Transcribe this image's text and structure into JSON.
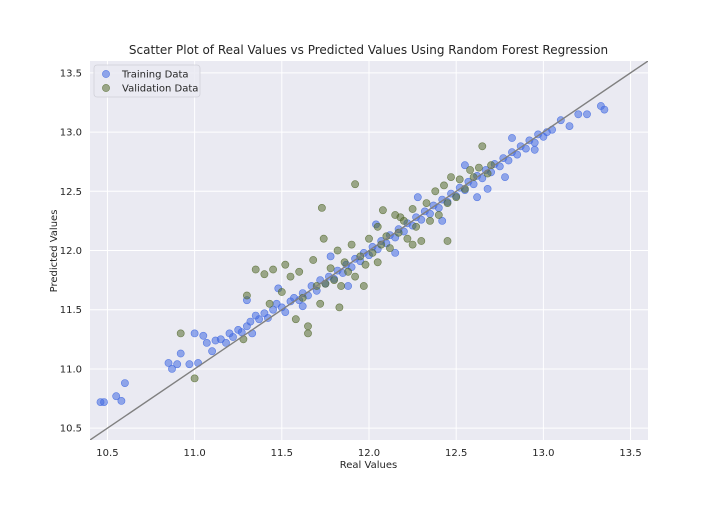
{
  "chart_data": {
    "type": "scatter",
    "title": "Scatter Plot of Real Values vs Predicted Values Using Random Forest Regression",
    "xlabel": "Real Values",
    "ylabel": "Predicted Values",
    "xlim": [
      10.4,
      13.6
    ],
    "ylim": [
      10.4,
      13.6
    ],
    "xticks": [
      "10.5",
      "11.0",
      "11.5",
      "12.0",
      "12.5",
      "13.0",
      "13.5"
    ],
    "yticks": [
      "10.5",
      "11.0",
      "11.5",
      "12.0",
      "12.5",
      "13.0",
      "13.5"
    ],
    "grid": true,
    "background": "#eaeaf2",
    "legend_position": "upper left",
    "reference_line": {
      "from": [
        10.4,
        10.4
      ],
      "to": [
        13.6,
        13.6
      ],
      "color": "#808080"
    },
    "series": [
      {
        "name": "Training Data",
        "color": "#4169e1",
        "points": [
          [
            10.46,
            10.72
          ],
          [
            10.48,
            10.72
          ],
          [
            10.55,
            10.77
          ],
          [
            10.58,
            10.73
          ],
          [
            10.6,
            10.88
          ],
          [
            10.85,
            11.05
          ],
          [
            10.87,
            11.0
          ],
          [
            10.9,
            11.04
          ],
          [
            10.92,
            11.13
          ],
          [
            10.97,
            11.04
          ],
          [
            11.0,
            11.3
          ],
          [
            11.02,
            11.05
          ],
          [
            11.05,
            11.28
          ],
          [
            11.07,
            11.22
          ],
          [
            11.1,
            11.15
          ],
          [
            11.12,
            11.24
          ],
          [
            11.15,
            11.25
          ],
          [
            11.18,
            11.22
          ],
          [
            11.2,
            11.3
          ],
          [
            11.22,
            11.27
          ],
          [
            11.25,
            11.33
          ],
          [
            11.27,
            11.31
          ],
          [
            11.3,
            11.36
          ],
          [
            11.32,
            11.4
          ],
          [
            11.33,
            11.3
          ],
          [
            11.35,
            11.45
          ],
          [
            11.37,
            11.42
          ],
          [
            11.4,
            11.47
          ],
          [
            11.42,
            11.43
          ],
          [
            11.45,
            11.5
          ],
          [
            11.47,
            11.55
          ],
          [
            11.5,
            11.52
          ],
          [
            11.52,
            11.48
          ],
          [
            11.55,
            11.57
          ],
          [
            11.57,
            11.6
          ],
          [
            11.6,
            11.58
          ],
          [
            11.62,
            11.64
          ],
          [
            11.65,
            11.62
          ],
          [
            11.67,
            11.7
          ],
          [
            11.7,
            11.66
          ],
          [
            11.72,
            11.75
          ],
          [
            11.75,
            11.72
          ],
          [
            11.77,
            11.78
          ],
          [
            11.8,
            11.76
          ],
          [
            11.82,
            11.83
          ],
          [
            11.85,
            11.81
          ],
          [
            11.87,
            11.88
          ],
          [
            11.9,
            11.86
          ],
          [
            11.92,
            11.93
          ],
          [
            11.95,
            11.91
          ],
          [
            11.97,
            11.98
          ],
          [
            12.0,
            11.96
          ],
          [
            12.02,
            12.03
          ],
          [
            12.05,
            12.01
          ],
          [
            12.07,
            12.08
          ],
          [
            12.1,
            12.06
          ],
          [
            12.12,
            12.13
          ],
          [
            12.15,
            12.11
          ],
          [
            12.17,
            12.18
          ],
          [
            12.2,
            12.16
          ],
          [
            12.22,
            12.23
          ],
          [
            12.25,
            12.21
          ],
          [
            12.27,
            12.28
          ],
          [
            12.3,
            12.26
          ],
          [
            12.32,
            12.33
          ],
          [
            12.35,
            12.31
          ],
          [
            12.37,
            12.38
          ],
          [
            12.4,
            12.36
          ],
          [
            12.42,
            12.43
          ],
          [
            12.45,
            12.41
          ],
          [
            12.47,
            12.48
          ],
          [
            12.5,
            12.46
          ],
          [
            12.52,
            12.53
          ],
          [
            12.55,
            12.51
          ],
          [
            12.57,
            12.58
          ],
          [
            12.6,
            12.56
          ],
          [
            12.62,
            12.63
          ],
          [
            12.65,
            12.61
          ],
          [
            12.67,
            12.68
          ],
          [
            12.7,
            12.66
          ],
          [
            12.72,
            12.73
          ],
          [
            12.75,
            12.71
          ],
          [
            12.77,
            12.78
          ],
          [
            12.8,
            12.76
          ],
          [
            12.82,
            12.83
          ],
          [
            12.85,
            12.81
          ],
          [
            12.87,
            12.88
          ],
          [
            12.9,
            12.86
          ],
          [
            12.92,
            12.93
          ],
          [
            12.95,
            12.91
          ],
          [
            12.97,
            12.98
          ],
          [
            13.0,
            12.96
          ],
          [
            13.02,
            13.0
          ],
          [
            13.05,
            13.02
          ],
          [
            13.1,
            13.1
          ],
          [
            13.15,
            13.05
          ],
          [
            13.2,
            13.15
          ],
          [
            13.25,
            13.15
          ],
          [
            13.33,
            13.22
          ],
          [
            13.35,
            13.19
          ],
          [
            11.48,
            11.68
          ],
          [
            11.62,
            11.53
          ],
          [
            11.78,
            11.95
          ],
          [
            11.88,
            11.7
          ],
          [
            12.04,
            12.22
          ],
          [
            12.15,
            11.98
          ],
          [
            12.28,
            12.45
          ],
          [
            12.42,
            12.25
          ],
          [
            12.55,
            12.72
          ],
          [
            12.68,
            12.52
          ],
          [
            12.82,
            12.95
          ],
          [
            12.95,
            12.85
          ],
          [
            12.62,
            12.45
          ],
          [
            12.78,
            12.62
          ],
          [
            11.3,
            11.58
          ]
        ]
      },
      {
        "name": "Validation Data",
        "color": "#556b2f",
        "points": [
          [
            11.0,
            10.92
          ],
          [
            10.92,
            11.3
          ],
          [
            11.28,
            11.25
          ],
          [
            11.3,
            11.62
          ],
          [
            11.35,
            11.84
          ],
          [
            11.4,
            11.8
          ],
          [
            11.45,
            11.84
          ],
          [
            11.43,
            11.55
          ],
          [
            11.5,
            11.65
          ],
          [
            11.55,
            11.78
          ],
          [
            11.6,
            11.82
          ],
          [
            11.62,
            11.6
          ],
          [
            11.65,
            11.36
          ],
          [
            11.65,
            11.3
          ],
          [
            11.68,
            11.92
          ],
          [
            11.7,
            11.7
          ],
          [
            11.72,
            11.55
          ],
          [
            11.73,
            12.36
          ],
          [
            11.74,
            12.1
          ],
          [
            11.75,
            11.72
          ],
          [
            11.78,
            11.85
          ],
          [
            11.8,
            11.75
          ],
          [
            11.82,
            12.0
          ],
          [
            11.84,
            11.7
          ],
          [
            11.86,
            11.9
          ],
          [
            11.88,
            11.82
          ],
          [
            11.9,
            12.05
          ],
          [
            11.92,
            12.56
          ],
          [
            11.92,
            11.78
          ],
          [
            11.95,
            11.95
          ],
          [
            11.98,
            11.88
          ],
          [
            12.0,
            12.1
          ],
          [
            12.02,
            11.98
          ],
          [
            12.05,
            12.2
          ],
          [
            12.07,
            12.05
          ],
          [
            12.08,
            12.34
          ],
          [
            12.1,
            12.12
          ],
          [
            12.12,
            12.02
          ],
          [
            12.15,
            12.3
          ],
          [
            12.17,
            12.15
          ],
          [
            12.2,
            12.25
          ],
          [
            12.22,
            12.1
          ],
          [
            12.25,
            12.35
          ],
          [
            12.27,
            12.2
          ],
          [
            12.3,
            12.08
          ],
          [
            12.33,
            12.4
          ],
          [
            12.35,
            12.25
          ],
          [
            12.38,
            12.5
          ],
          [
            12.4,
            12.3
          ],
          [
            12.43,
            12.55
          ],
          [
            12.45,
            12.4
          ],
          [
            12.47,
            12.62
          ],
          [
            12.5,
            12.45
          ],
          [
            12.52,
            12.6
          ],
          [
            12.55,
            12.52
          ],
          [
            12.58,
            12.68
          ],
          [
            12.6,
            12.62
          ],
          [
            12.63,
            12.7
          ],
          [
            12.65,
            12.88
          ],
          [
            12.68,
            12.65
          ],
          [
            12.7,
            12.72
          ],
          [
            12.45,
            12.08
          ],
          [
            12.25,
            12.05
          ],
          [
            11.52,
            11.88
          ],
          [
            11.58,
            11.42
          ],
          [
            11.83,
            11.52
          ],
          [
            11.97,
            11.7
          ],
          [
            12.05,
            11.9
          ],
          [
            12.18,
            12.28
          ]
        ]
      }
    ]
  }
}
